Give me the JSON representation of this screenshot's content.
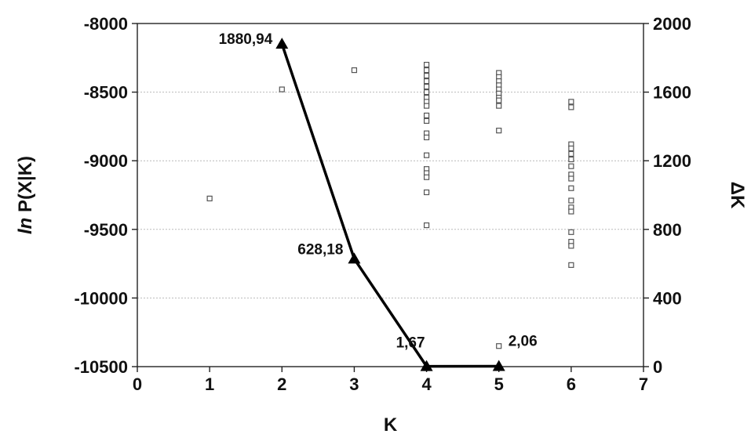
{
  "chart_data": {
    "type": "scatter",
    "xlabel": "K",
    "ylabel_left": {
      "italic": "ln",
      "rest": " P(X|K)"
    },
    "ylabel_right": "ΔK",
    "xlim": [
      0,
      7
    ],
    "ylim_left": [
      -10500,
      -8000
    ],
    "ylim_right": [
      0,
      2000
    ],
    "x_ticks": [
      "0",
      "1",
      "2",
      "3",
      "4",
      "5",
      "6",
      "7"
    ],
    "y_left_ticks": [
      "-8000",
      "-8500",
      "-9000",
      "-9500",
      "-10000",
      "-10500"
    ],
    "y_right_ticks": [
      "2000",
      "1600",
      "1200",
      "800",
      "400",
      "0"
    ],
    "grid": true,
    "series": [
      {
        "marker": "open-square",
        "axis": "left",
        "color": "#555555",
        "points": [
          [
            1,
            -9275
          ],
          [
            2,
            -8480
          ],
          [
            3,
            -8340
          ],
          [
            4,
            -8300
          ],
          [
            4,
            -8340
          ],
          [
            4,
            -8380
          ],
          [
            4,
            -8420
          ],
          [
            4,
            -8460
          ],
          [
            4,
            -8500
          ],
          [
            4,
            -8540
          ],
          [
            4,
            -8570
          ],
          [
            4,
            -8600
          ],
          [
            4,
            -8670
          ],
          [
            4,
            -8710
          ],
          [
            4,
            -8800
          ],
          [
            4,
            -8830
          ],
          [
            4,
            -8960
          ],
          [
            4,
            -9060
          ],
          [
            4,
            -9090
          ],
          [
            4,
            -9120
          ],
          [
            4,
            -9230
          ],
          [
            4,
            -9470
          ],
          [
            5,
            -8360
          ],
          [
            5,
            -8390
          ],
          [
            5,
            -8420
          ],
          [
            5,
            -8450
          ],
          [
            5,
            -8480
          ],
          [
            5,
            -8510
          ],
          [
            5,
            -8540
          ],
          [
            5,
            -8560
          ],
          [
            5,
            -8600
          ],
          [
            5,
            -8780
          ],
          [
            5,
            -10350
          ],
          [
            6,
            -8570
          ],
          [
            6,
            -8610
          ],
          [
            6,
            -8880
          ],
          [
            6,
            -8910
          ],
          [
            6,
            -8950
          ],
          [
            6,
            -8990
          ],
          [
            6,
            -9040
          ],
          [
            6,
            -9100
          ],
          [
            6,
            -9130
          ],
          [
            6,
            -9200
          ],
          [
            6,
            -9290
          ],
          [
            6,
            -9340
          ],
          [
            6,
            -9370
          ],
          [
            6,
            -9520
          ],
          [
            6,
            -9590
          ],
          [
            6,
            -9620
          ],
          [
            6,
            -9760
          ]
        ]
      },
      {
        "marker": "triangle",
        "line": true,
        "axis": "right",
        "color": "#000000",
        "points": [
          [
            2,
            1880.94
          ],
          [
            3,
            628.18
          ],
          [
            4,
            1.67
          ],
          [
            5,
            2.06
          ]
        ],
        "labels": [
          "1880,94",
          "628,18",
          "1,67",
          "2,06"
        ]
      }
    ]
  }
}
